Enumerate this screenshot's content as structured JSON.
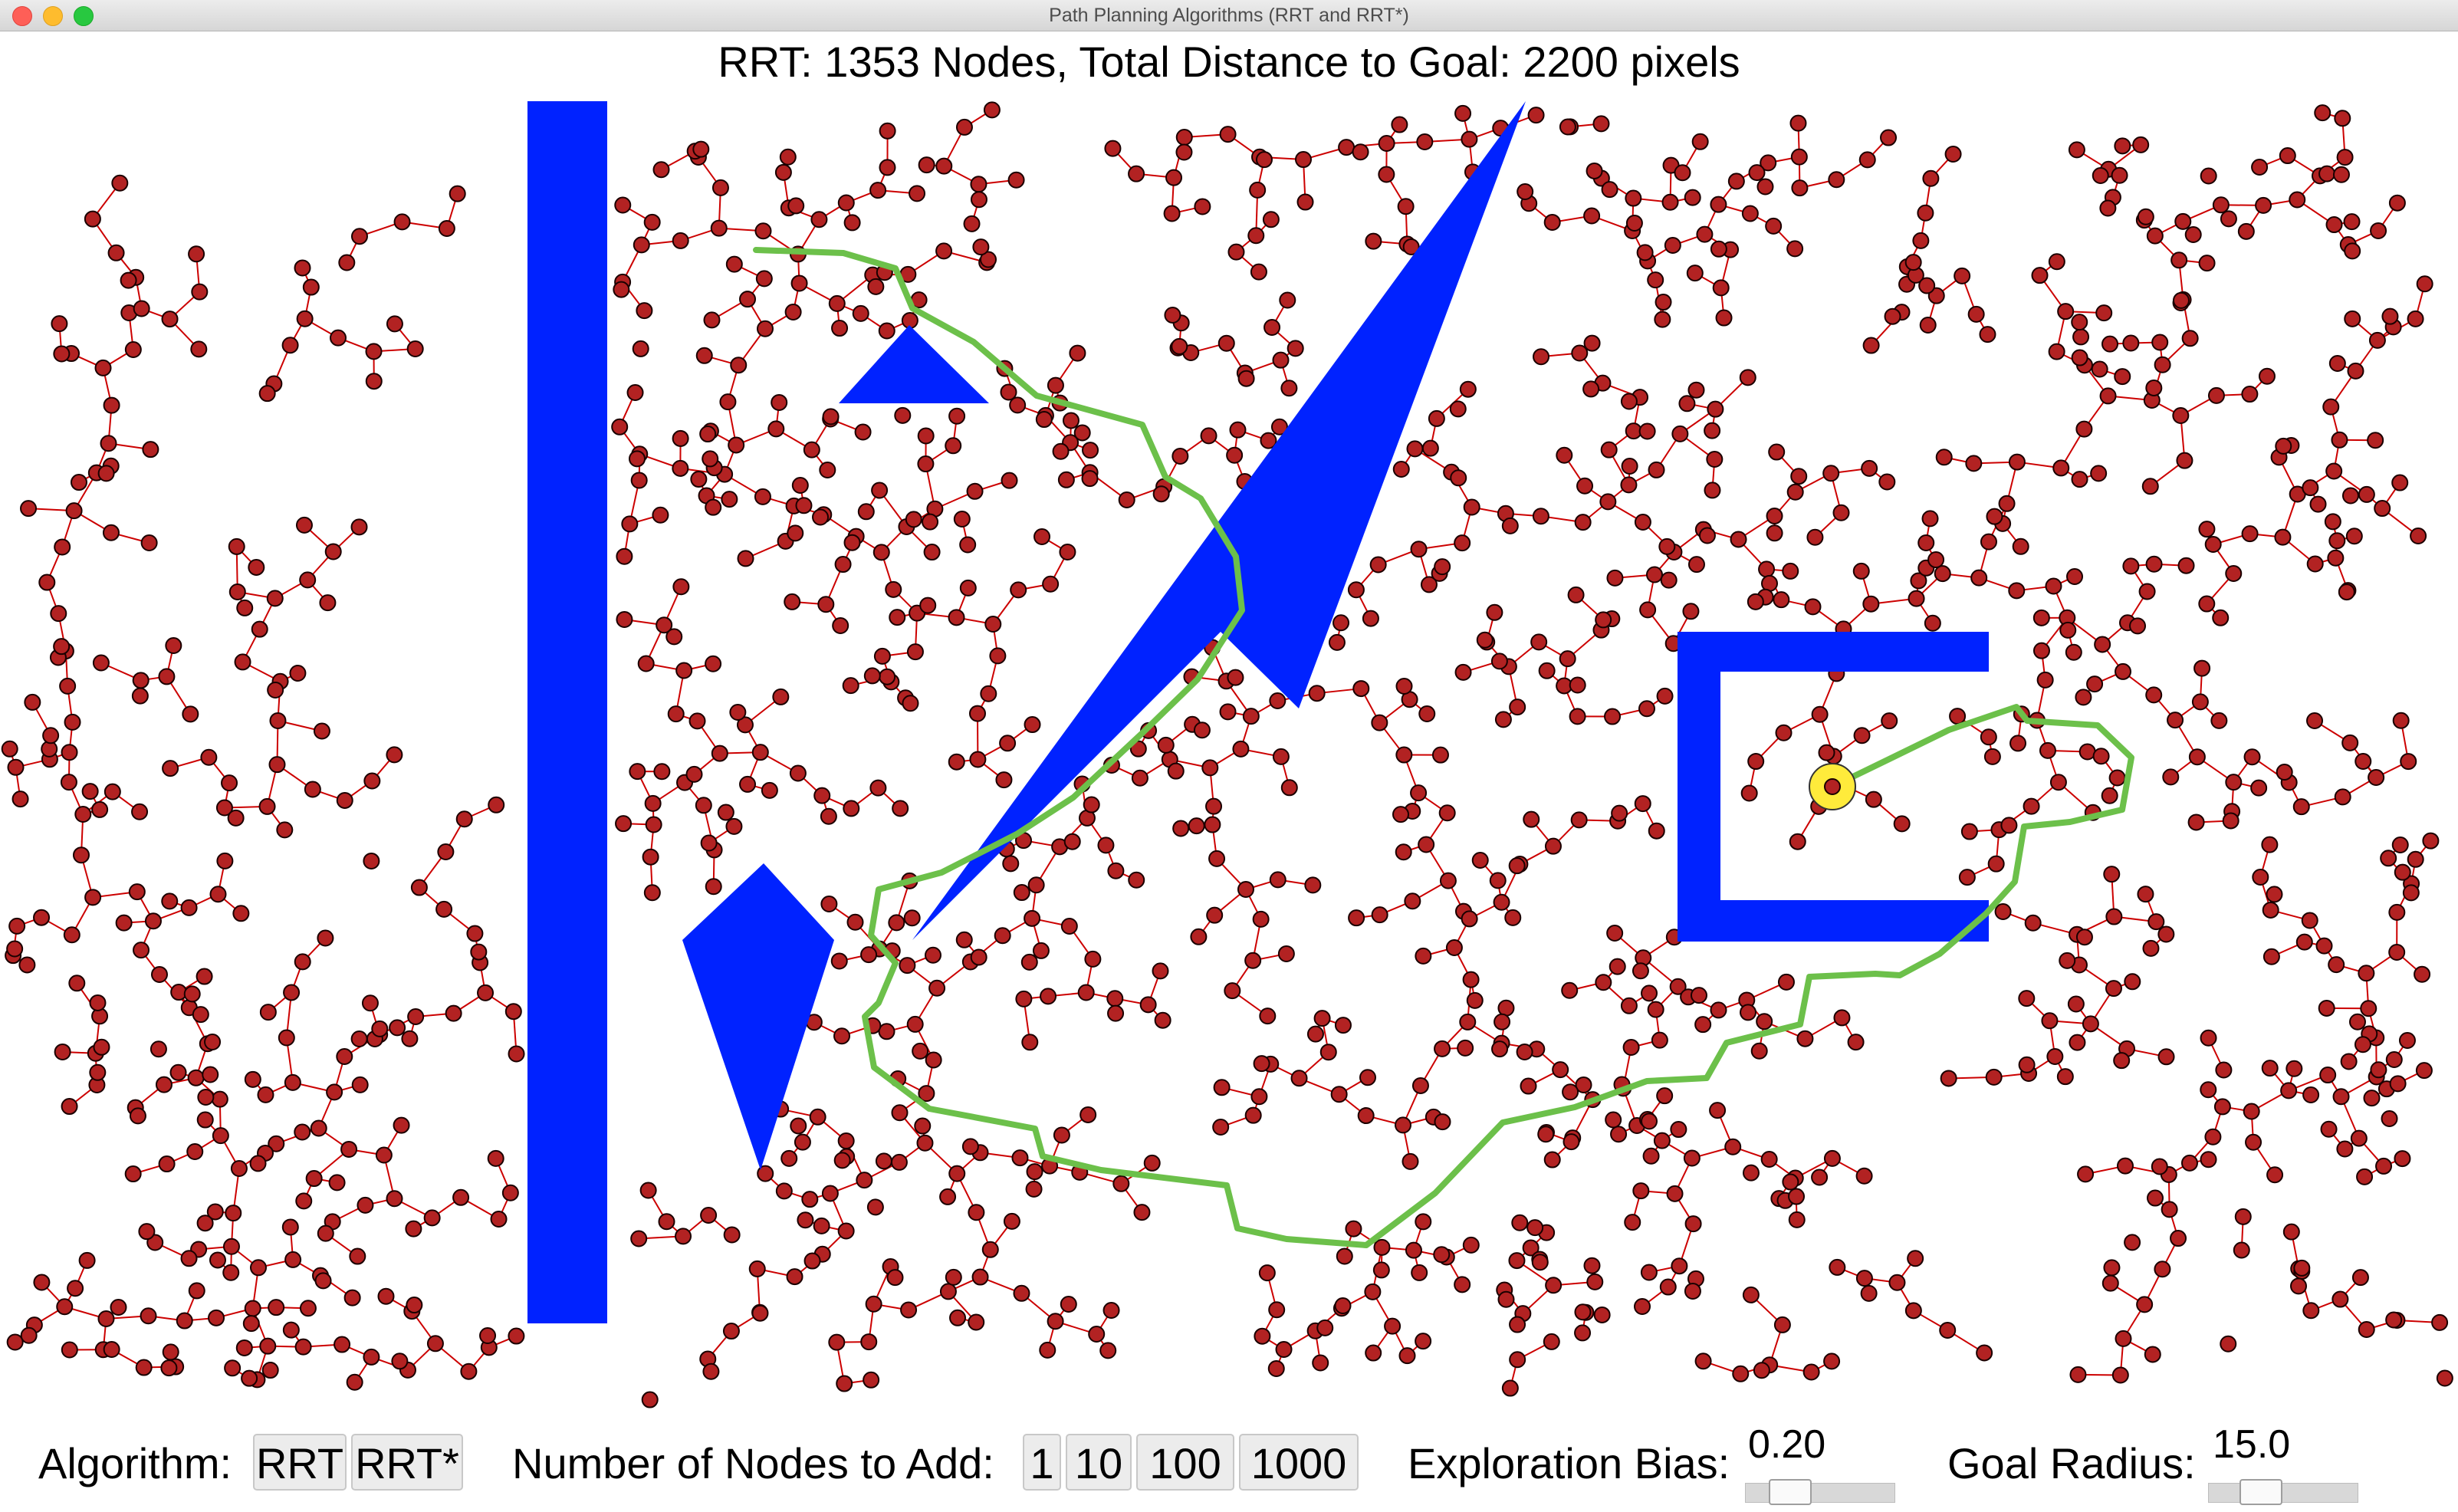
{
  "window": {
    "title": "Path Planning Algorithms (RRT and RRT*)"
  },
  "canvas": {
    "title": "RRT: 1353 Nodes, Total Distance to Goal: 2200 pixels"
  },
  "colors": {
    "obstacle": "#0022ff",
    "tree_edge": "#cc0000",
    "node_fill": "#b22222",
    "node_stroke": "#1a0000",
    "path": "#6cc04a",
    "goal": "#ffeb3b"
  },
  "controls": {
    "algorithm_label": "Algorithm:",
    "algorithm_options": [
      "RRT",
      "RRT*"
    ],
    "nodes_label": "Number of Nodes to Add:",
    "nodes_options": [
      "1",
      "10",
      "100",
      "1000"
    ],
    "bias_label": "Exploration Bias:",
    "bias_value": "0.20",
    "goal_radius_label": "Goal Radius:",
    "goal_radius_value": "15.0"
  }
}
